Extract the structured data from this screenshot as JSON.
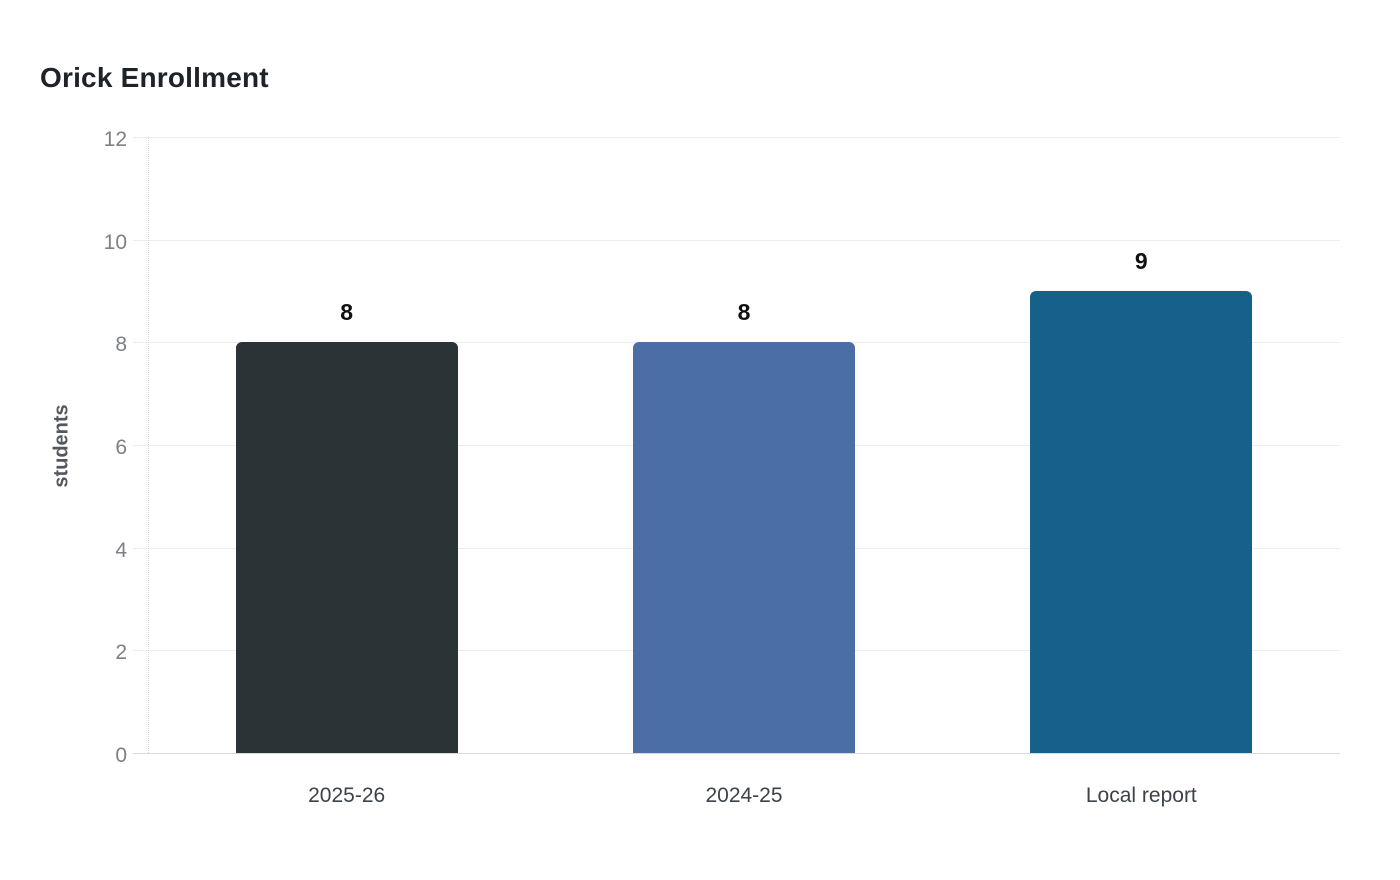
{
  "chart_data": {
    "type": "bar",
    "title": "Orick Enrollment",
    "categories": [
      "2025-26",
      "2024-25",
      "Local report"
    ],
    "values": [
      8,
      8,
      9
    ],
    "data_labels": [
      "8",
      "8",
      "9"
    ],
    "bar_colors": [
      "#2b3336",
      "#4c6ea6",
      "#16608c"
    ],
    "xlabel": "",
    "ylabel": "students",
    "ylim": [
      0,
      12
    ],
    "yticks": [
      0,
      2,
      4,
      6,
      8,
      10,
      12
    ],
    "grid": "horizontal",
    "legend": "none"
  },
  "style": {
    "background": "#ffffff",
    "title_color": "#1e2329",
    "grid_color": "#ececec",
    "zero_line_color": "#d9d9d9",
    "axis_line_color": "#d4d4d4",
    "y_tick_color": "#7d8084",
    "x_tick_color": "#3d4348",
    "y_title_color": "#54585c",
    "value_label_color": "#111111"
  }
}
